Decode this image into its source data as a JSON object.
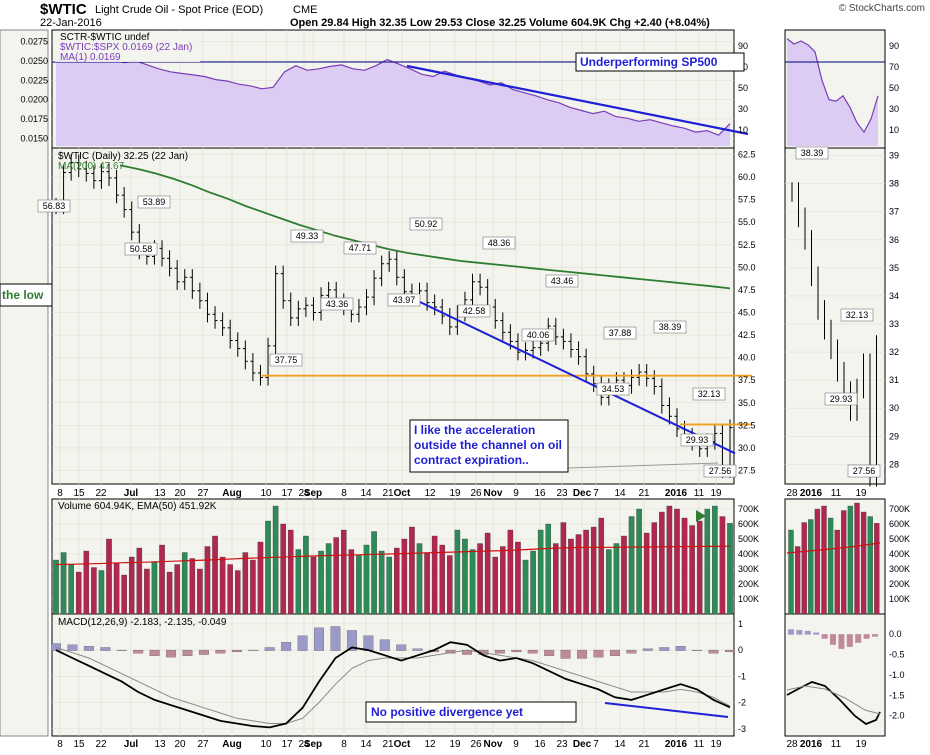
{
  "header": {
    "symbol": "$WTIC",
    "name": "Light Crude Oil - Spot Price (EOD)",
    "exchange": "CME",
    "date": "22-Jan-2016",
    "ohlc": "Open 29.84  High 32.35  Low 29.53  Close 32.25  Volume 604.9K  Chg +2.40 (+8.04%)",
    "watermark": "© StockCharts.com"
  },
  "colors": {
    "panel_bg": "#f4f4ee",
    "purple_line": "#7a3db8",
    "purple_fill": "#dccbf2",
    "ma200": "#2e7d32",
    "trend_blue": "#1f1fd6",
    "support_orange": "#f0a020",
    "vol_up": "#2e8b57",
    "vol_down": "#b0284f",
    "macd_hist": "#8a8ac0"
  },
  "chart_data": [
    {
      "panel": "relative",
      "type": "line",
      "legend": [
        "SCTR-$WTIC undef",
        "$WTIC:$SPX 0.0169 (22 Jan)",
        "MA(1) 0.0169"
      ],
      "y_ticks_left": [
        "0.0275",
        "0.0250",
        "0.0225",
        "0.0200",
        "0.0175",
        "0.0150"
      ],
      "y_ticks_right": [
        "90",
        "70",
        "50",
        "30",
        "10"
      ],
      "annotation": "Underperforming SP500",
      "values": [
        0.0249,
        0.0252,
        0.0254,
        0.0253,
        0.0255,
        0.0251,
        0.0248,
        0.025,
        0.0245,
        0.024,
        0.0236,
        0.0234,
        0.0232,
        0.023,
        0.0226,
        0.0224,
        0.022,
        0.0218,
        0.0214,
        0.0216,
        0.0236,
        0.0244,
        0.0238,
        0.024,
        0.0243,
        0.0245,
        0.024,
        0.0238,
        0.0244,
        0.0252,
        0.0246,
        0.024,
        0.0233,
        0.023,
        0.0237,
        0.0232,
        0.0228,
        0.0224,
        0.0219,
        0.0222,
        0.0213,
        0.0209,
        0.0205,
        0.02,
        0.0196,
        0.019,
        0.0186,
        0.0182,
        0.0185,
        0.0178,
        0.0176,
        0.0172,
        0.0174,
        0.017,
        0.0166,
        0.0163,
        0.0158,
        0.016,
        0.0154,
        0.0169
      ]
    },
    {
      "panel": "price",
      "type": "ohlc",
      "title": "$WTIC (Daily) 32.25 (22 Jan)",
      "ma_legend": "MA(200) 47.67",
      "ylim": [
        26,
        63
      ],
      "y_ticks": [
        "62.5",
        "60.0",
        "57.5",
        "55.0",
        "52.5",
        "50.0",
        "47.5",
        "45.0",
        "42.5",
        "40.0",
        "37.5",
        "35.0",
        "32.5",
        "30.0",
        "27.5"
      ],
      "closes": [
        56.8,
        60.5,
        61.6,
        60.9,
        60.4,
        59.6,
        60.6,
        59.9,
        58.0,
        56.4,
        53.9,
        51.8,
        51.2,
        52.1,
        51.0,
        49.9,
        48.4,
        48.9,
        47.4,
        46.3,
        44.8,
        44.1,
        43.3,
        41.9,
        41.0,
        39.6,
        38.3,
        37.8,
        41.3,
        49.3,
        46.3,
        44.4,
        45.4,
        45.8,
        45.0,
        46.9,
        47.5,
        46.2,
        45.6,
        44.8,
        45.6,
        46.7,
        48.8,
        50.4,
        50.9,
        48.9,
        47.3,
        46.6,
        47.4,
        46.1,
        45.6,
        44.6,
        43.4,
        44.9,
        46.4,
        48.4,
        47.8,
        45.6,
        44.1,
        42.8,
        41.8,
        40.6,
        40.8,
        41.1,
        41.6,
        43.5,
        42.3,
        41.8,
        40.9,
        40.1,
        38.2,
        37.1,
        35.6,
        36.8,
        37.5,
        36.9,
        37.8,
        38.4,
        37.7,
        36.8,
        34.7,
        33.5,
        32.1,
        31.3,
        30.6,
        29.9,
        30.7,
        31.6,
        27.56,
        32.25
      ],
      "ma200": [
        61.3,
        60.9,
        60.4,
        59.8,
        59.1,
        58.3,
        57.6,
        56.8,
        56.1,
        55.4,
        54.7,
        54.1,
        53.5,
        53.0,
        52.5,
        52.0,
        51.6,
        51.3,
        51.0,
        50.7,
        50.5,
        50.3,
        50.1,
        49.9,
        49.7,
        49.5,
        49.3,
        49.1,
        48.9,
        48.7,
        48.5,
        48.3,
        48.1,
        47.9,
        47.67
      ],
      "price_labels": [
        "56.83",
        "53.89",
        "50.58",
        "37.75",
        "49.33",
        "43.36",
        "47.71",
        "43.97",
        "50.92",
        "48.36",
        "42.58",
        "40.06",
        "43.46",
        "37.88",
        "34.53",
        "38.39",
        "32.13",
        "29.93",
        "27.56"
      ],
      "support_level": 38.0,
      "annotation": "I like the acceleration outside the channel on oil contract expiration..",
      "left_annotation": "the low"
    },
    {
      "panel": "volume",
      "type": "bar",
      "legend": "Volume 604.94K, EMA(50) 451.92K",
      "y_ticks": [
        "700K",
        "600K",
        "500K",
        "400K",
        "300K",
        "200K",
        "100K"
      ],
      "values": [
        360,
        410,
        330,
        280,
        420,
        310,
        290,
        500,
        340,
        260,
        380,
        440,
        300,
        350,
        460,
        280,
        330,
        410,
        370,
        300,
        450,
        520,
        380,
        330,
        290,
        410,
        360,
        480,
        620,
        720,
        600,
        560,
        430,
        520,
        380,
        420,
        470,
        510,
        560,
        430,
        390,
        460,
        550,
        420,
        380,
        440,
        500,
        580,
        470,
        410,
        520,
        460,
        390,
        560,
        500,
        430,
        470,
        540,
        380,
        450,
        560,
        480,
        360,
        420,
        560,
        600,
        470,
        610,
        500,
        530,
        560,
        580,
        640,
        430,
        470,
        520,
        650,
        700,
        540,
        610,
        680,
        720,
        700,
        640,
        590,
        620,
        700,
        720,
        650,
        605
      ],
      "ema50": [
        330,
        332,
        335,
        338,
        342,
        345,
        348,
        352,
        356,
        360,
        365,
        370,
        374,
        378,
        382,
        386,
        389,
        392,
        395,
        398,
        401,
        404,
        408,
        411,
        414,
        418,
        421,
        425,
        430,
        436,
        440,
        443,
        444,
        445,
        446,
        447,
        448,
        449,
        450,
        451,
        451.92
      ]
    },
    {
      "panel": "macd",
      "type": "line",
      "legend": "MACD(12,26,9) -2.183, -2.135, -0.049",
      "y_ticks": [
        "1",
        "0",
        "-1",
        "-2",
        "-3"
      ],
      "annotation": "No positive divergence yet",
      "macd": [
        0.0,
        -0.3,
        -0.6,
        -0.9,
        -1.2,
        -1.6,
        -1.9,
        -2.1,
        -2.3,
        -2.5,
        -2.7,
        -2.8,
        -2.9,
        -2.95,
        -2.8,
        -2.2,
        -1.2,
        -0.3,
        0.1,
        0.0,
        -0.2,
        -0.4,
        -0.2,
        0.0,
        0.3,
        0.2,
        -0.2,
        -0.4,
        -0.3,
        -0.5,
        -0.8,
        -1.1,
        -1.3,
        -1.5,
        -1.8,
        -1.9,
        -1.7,
        -1.5,
        -1.3,
        -1.5,
        -1.9,
        -2.183
      ],
      "signal": [
        0.1,
        -0.1,
        -0.3,
        -0.6,
        -0.9,
        -1.2,
        -1.5,
        -1.8,
        -2.0,
        -2.2,
        -2.4,
        -2.6,
        -2.7,
        -2.8,
        -2.8,
        -2.6,
        -2.0,
        -1.3,
        -0.7,
        -0.4,
        -0.3,
        -0.3,
        -0.3,
        -0.2,
        -0.1,
        0.0,
        -0.1,
        -0.2,
        -0.3,
        -0.4,
        -0.6,
        -0.8,
        -1.0,
        -1.2,
        -1.4,
        -1.6,
        -1.6,
        -1.6,
        -1.5,
        -1.6,
        -1.8,
        -2.135
      ],
      "hist": [
        0.25,
        0.2,
        0.15,
        0.1,
        0.0,
        -0.1,
        -0.2,
        -0.25,
        -0.2,
        -0.15,
        -0.1,
        -0.05,
        0.0,
        0.1,
        0.3,
        0.55,
        0.85,
        0.9,
        0.75,
        0.55,
        0.4,
        0.2,
        0.05,
        -0.05,
        -0.1,
        -0.15,
        -0.15,
        -0.1,
        -0.05,
        -0.1,
        -0.2,
        -0.3,
        -0.3,
        -0.25,
        -0.2,
        -0.1,
        0.05,
        0.1,
        0.15,
        0.0,
        -0.1,
        -0.049
      ]
    },
    {
      "panel": "inset",
      "type": "ohlc",
      "y_ticks": [
        "39",
        "38",
        "37",
        "36",
        "35",
        "34",
        "33",
        "32",
        "31",
        "30",
        "29",
        "28"
      ],
      "price_labels": [
        "38.39",
        "32.13",
        "29.93",
        "27.56"
      ],
      "x_labels": [
        "28",
        "2016",
        "11",
        "19"
      ],
      "relative_ticks": [
        "90",
        "70",
        "50",
        "30",
        "10"
      ],
      "volume_ticks": [
        "700K",
        "600K",
        "500K",
        "400K",
        "300K",
        "200K",
        "100K"
      ],
      "macd_ticks": [
        "0.0",
        "-0.5",
        "-1.0",
        "-1.5",
        "-2.0"
      ]
    }
  ],
  "x_axis_labels": [
    "8",
    "15",
    "22",
    "Jul",
    "13",
    "20",
    "27",
    "Aug",
    "10",
    "17",
    "24",
    "Sep",
    "8",
    "14",
    "21",
    "Oct",
    "12",
    "19",
    "26",
    "Nov",
    "9",
    "16",
    "23",
    "Dec",
    "7",
    "14",
    "21",
    "2016",
    "11",
    "19"
  ]
}
